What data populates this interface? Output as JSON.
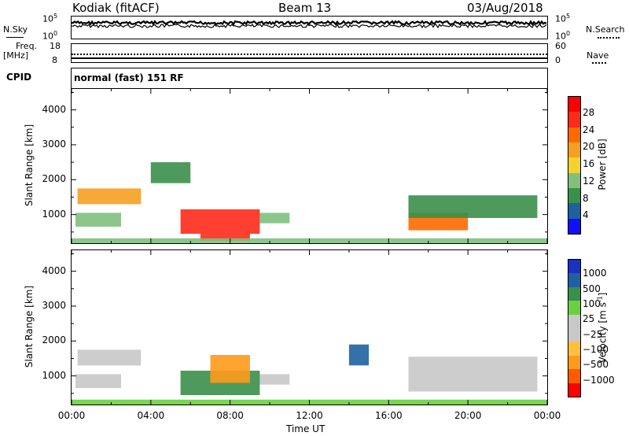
{
  "header": {
    "station": "Kodiak (fitACF)",
    "beam": "Beam 13",
    "date": "03/Aug/2018"
  },
  "nsky_panel": {
    "left_label": "N.Sky",
    "right_label": "N.Search",
    "left_ticks": [
      "10^5",
      "10^0"
    ],
    "right_ticks": [
      "10^5",
      "10^0"
    ]
  },
  "freq_panel": {
    "left_label_1": "Freq.",
    "left_label_2": "[MHz]",
    "right_label": "Nave",
    "left_ticks": [
      "18",
      "8"
    ],
    "right_ticks": [
      "60",
      "0"
    ]
  },
  "cpid_panel": {
    "label": "CPID",
    "text": "normal (fast) 151 RF"
  },
  "colors": {
    "power": [
      "#1010ff",
      "#2060a0",
      "#3a8f4a",
      "#7fc07f",
      "#f2d22e",
      "#f5a020",
      "#ff6a00",
      "#ff2a1a",
      "#ff0000"
    ],
    "velocity": [
      "#ff0000",
      "#ff5a00",
      "#ff9a1a",
      "#ffc040",
      "#c8c8c8",
      "#c8c8c8",
      "#6ad040",
      "#3a8f4a",
      "#2060a0",
      "#1a30c0"
    ]
  },
  "chart_data": [
    {
      "type": "heatmap",
      "title": "",
      "ylabel": "Slant Range [km]",
      "xlabel": "",
      "colorbar_label": "Power [dB]",
      "colorbar_ticks": [
        "28",
        "24",
        "20",
        "16",
        "12",
        "8",
        "4"
      ],
      "yticks": [
        "4000",
        "3000",
        "2000",
        "1000"
      ],
      "xticks": [
        "00:00",
        "04:00",
        "08:00",
        "12:00",
        "16:00",
        "20:00",
        "00:00"
      ],
      "xlim": [
        0,
        24
      ],
      "ylim": [
        180,
        4600
      ],
      "bands": [
        {
          "t0": 0.3,
          "t1": 3.5,
          "r0": 1300,
          "r1": 1750,
          "v": 22
        },
        {
          "t0": 0.2,
          "t1": 2.5,
          "r0": 650,
          "r1": 1050,
          "v": 14
        },
        {
          "t0": 5.5,
          "t1": 9.5,
          "r0": 450,
          "r1": 1150,
          "v": 30
        },
        {
          "t0": 6.5,
          "t1": 9.0,
          "r0": 250,
          "r1": 450,
          "v": 28
        },
        {
          "t0": 9.5,
          "t1": 11.0,
          "r0": 750,
          "r1": 1050,
          "v": 14
        },
        {
          "t0": 17.0,
          "t1": 20.0,
          "r0": 550,
          "r1": 1050,
          "v": 24
        },
        {
          "t0": 17.0,
          "t1": 23.5,
          "r0": 900,
          "r1": 1550,
          "v": 10
        },
        {
          "t0": 4.0,
          "t1": 6.0,
          "r0": 1900,
          "r1": 2500,
          "v": 10
        },
        {
          "t0": 0.0,
          "t1": 24.0,
          "r0": 180,
          "r1": 320,
          "v": 12
        }
      ]
    },
    {
      "type": "heatmap",
      "title": "",
      "ylabel": "Slant Range [km]",
      "xlabel": "Time UT",
      "colorbar_label": "Velocity [m s^-1]",
      "colorbar_ticks": [
        "1000",
        "500",
        "100",
        "25",
        "−25",
        "−100",
        "−500",
        "−1000"
      ],
      "yticks": [
        "4000",
        "3000",
        "2000",
        "1000"
      ],
      "xticks": [
        "00:00",
        "04:00",
        "08:00",
        "12:00",
        "16:00",
        "20:00",
        "00:00"
      ],
      "xlim": [
        0,
        24
      ],
      "ylim": [
        180,
        4600
      ],
      "bands": [
        {
          "t0": 0.3,
          "t1": 3.5,
          "r0": 1300,
          "r1": 1750,
          "v": 0
        },
        {
          "t0": 0.2,
          "t1": 2.5,
          "r0": 650,
          "r1": 1050,
          "v": 0
        },
        {
          "t0": 5.5,
          "t1": 9.5,
          "r0": 450,
          "r1": 1150,
          "v": 150
        },
        {
          "t0": 7.0,
          "t1": 9.0,
          "r0": 800,
          "r1": 1600,
          "v": -300
        },
        {
          "t0": 9.5,
          "t1": 11.0,
          "r0": 750,
          "r1": 1050,
          "v": 0
        },
        {
          "t0": 17.0,
          "t1": 23.5,
          "r0": 550,
          "r1": 1550,
          "v": 0
        },
        {
          "t0": 14.0,
          "t1": 15.0,
          "r0": 1300,
          "r1": 1900,
          "v": 800
        },
        {
          "t0": 0.0,
          "t1": 24.0,
          "r0": 180,
          "r1": 320,
          "v": 60
        }
      ]
    }
  ]
}
